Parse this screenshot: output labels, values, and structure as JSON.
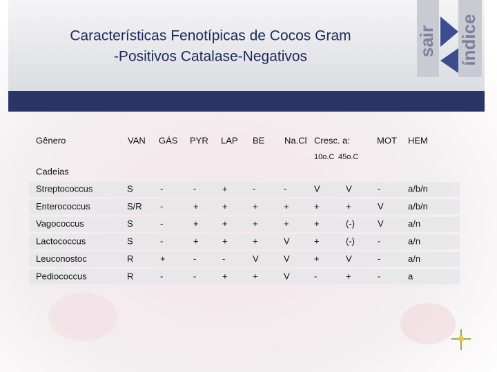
{
  "header": {
    "title_lines": [
      "Características Fenotípicas de Cocos Gram",
      "-Positivos Catalase-Negativos"
    ]
  },
  "nav": {
    "exit": "sair",
    "index": "índice"
  },
  "table": {
    "columns": [
      "Gênero",
      "VAN",
      "GÁS",
      "PYR",
      "LAP",
      "BE",
      "Na.Cl",
      "Cresc. a:",
      "MOT",
      "HEM"
    ],
    "subcolumns": [
      "10o.C",
      "45o.C"
    ],
    "group": "Cadeias",
    "rows": [
      [
        "Streptococcus",
        "S",
        "-",
        "-",
        "+",
        "-",
        "-",
        "V",
        "V",
        "-",
        "a/b/n"
      ],
      [
        "Enterococcus",
        "S/R",
        "-",
        "+",
        "+",
        "+",
        "+",
        "+",
        "+",
        "V",
        "a/b/n"
      ],
      [
        "Vagococcus",
        "S",
        "-",
        "+",
        "+",
        "+",
        "+",
        "+",
        "(-)",
        "V",
        "a/n"
      ],
      [
        "Lactococcus",
        "S",
        "-",
        "+",
        "+",
        "+",
        "V",
        "+",
        "(-)",
        "-",
        "a/n"
      ],
      [
        "Leuconostoc",
        "R",
        "+",
        "-",
        "-",
        "V",
        "V",
        "+",
        "V",
        "-",
        "a/n"
      ],
      [
        "Pediococcus",
        "R",
        "-",
        "-",
        "+",
        "+",
        "V",
        "-",
        "+",
        "-",
        "a"
      ]
    ]
  }
}
